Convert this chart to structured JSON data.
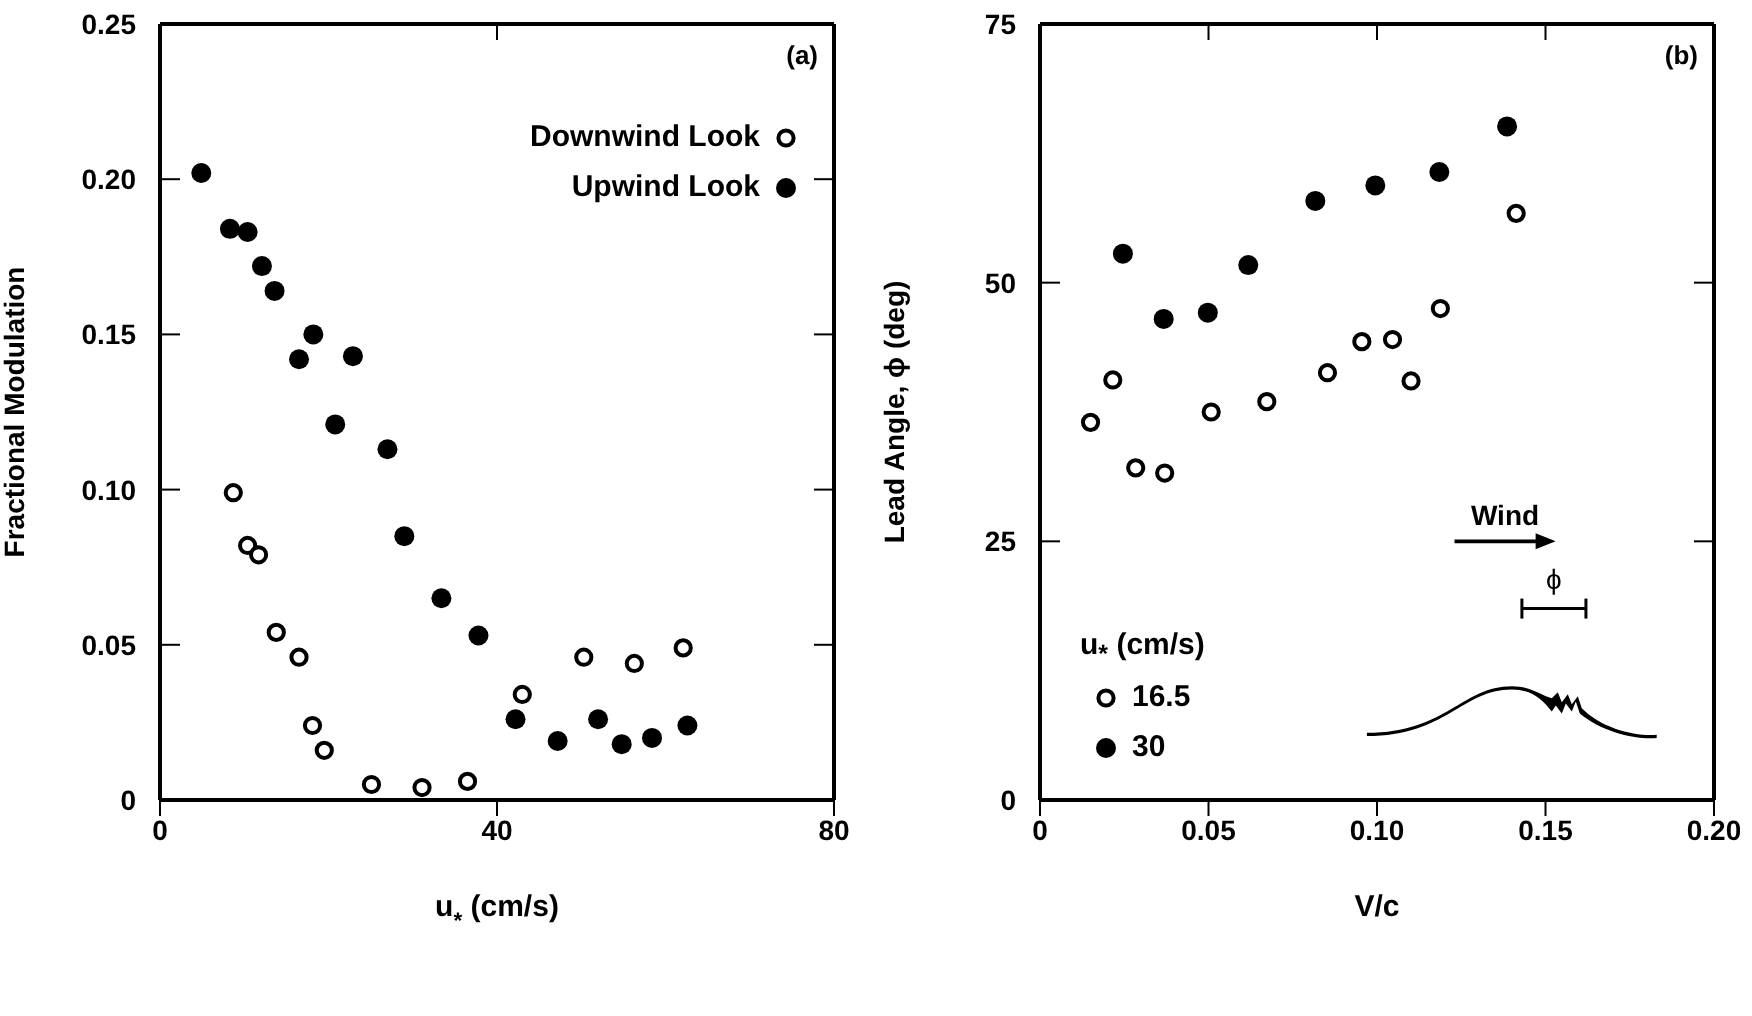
{
  "chart_data": [
    {
      "type": "scatter",
      "xlabel": "u$_{*}$ (cm/s)",
      "ylabel": "Fractional Modulation",
      "xlim": [
        0,
        80
      ],
      "xticks": [
        0,
        40,
        80
      ],
      "ylim": [
        0,
        0.25
      ],
      "yticks": [
        0,
        {
          "value": 0.05,
          "label": "0.05"
        },
        {
          "value": 0.1,
          "label": "0.10"
        },
        {
          "value": 0.15,
          "label": "0.15"
        },
        {
          "value": 0.2,
          "label": "0.20"
        },
        {
          "value": 0.25,
          "label": "0.25"
        }
      ],
      "marker": "circle",
      "legend": "top right",
      "annotations": [
        "(a)"
      ],
      "series": [
        {
          "name": "Downwind Look",
          "color": "#000000",
          "x": [
            8.7,
            10.4,
            11.7,
            13.8,
            16.5,
            18.1,
            19.5,
            25.1,
            31.1,
            36.5,
            43.0,
            50.3,
            56.3,
            62.1
          ],
          "values": [
            0.099,
            0.082,
            0.079,
            0.054,
            0.046,
            0.024,
            0.016,
            0.005,
            0.004,
            0.006,
            0.034,
            0.046,
            0.044,
            0.049
          ]
        },
        {
          "name": "Upwind Look",
          "color": "#000000",
          "x": [
            4.9,
            8.3,
            10.4,
            12.1,
            13.6,
            18.2,
            16.5,
            22.9,
            20.8,
            27.0,
            29.0,
            33.4,
            37.8,
            42.2,
            47.2,
            52.0,
            54.8,
            58.4,
            62.6
          ],
          "values": [
            0.202,
            0.184,
            0.183,
            0.172,
            0.164,
            0.15,
            0.142,
            0.143,
            0.121,
            0.113,
            0.085,
            0.065,
            0.053,
            0.026,
            0.019,
            0.026,
            0.018,
            0.02,
            0.024
          ]
        }
      ]
    },
    {
      "type": "scatter",
      "xlabel": "V/c",
      "ylabel": "Lead Angle, ϕ (deg)",
      "xlim": [
        0,
        0.2
      ],
      "xticks": [
        0,
        {
          "value": 0.05,
          "label": "0.05"
        },
        {
          "value": 0.1,
          "label": "0.10"
        },
        {
          "value": 0.15,
          "label": "0.15"
        },
        {
          "value": 0.2,
          "label": "0.20"
        }
      ],
      "ylim": [
        0,
        75
      ],
      "yticks": [
        0,
        25,
        50,
        75
      ],
      "marker": "circle",
      "legend": "bottom left",
      "legend_title": "u$_{*}$ (cm/s)",
      "annotations": [
        "(b)",
        "Wind",
        "ϕ"
      ],
      "series": [
        {
          "name": "16.5",
          "color": "#000000",
          "x": [
            0.015,
            0.0216,
            0.0284,
            0.037,
            0.0508,
            0.0673,
            0.0853,
            0.0955,
            0.1046,
            0.1101,
            0.1188,
            0.1413
          ],
          "values": [
            36.5,
            40.6,
            32.1,
            31.6,
            37.5,
            38.5,
            41.3,
            44.3,
            44.5,
            40.5,
            47.5,
            56.7
          ]
        },
        {
          "name": "30",
          "color": "#000000",
          "x": [
            0.0246,
            0.0367,
            0.0498,
            0.0618,
            0.0817,
            0.0995,
            0.1185,
            0.1386
          ],
          "values": [
            52.8,
            46.5,
            47.1,
            51.7,
            57.9,
            59.4,
            60.7,
            65.1
          ]
        }
      ]
    }
  ]
}
